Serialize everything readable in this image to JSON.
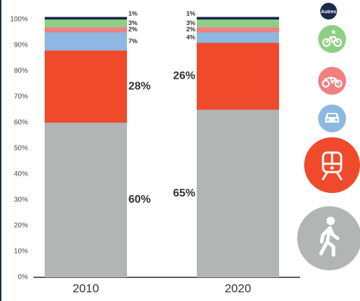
{
  "chart_data": {
    "type": "bar",
    "stacked": true,
    "categories": [
      "2010",
      "2020"
    ],
    "series": [
      {
        "icon": "walk",
        "color": "#b3b4b4",
        "values": [
          60,
          65
        ],
        "value_labels": [
          "60%",
          "65%"
        ]
      },
      {
        "icon": "transit",
        "color": "#ef4a2c",
        "values": [
          28,
          26
        ],
        "value_labels": [
          "28%",
          "26%"
        ]
      },
      {
        "icon": "car",
        "color": "#8cb8e2",
        "values": [
          7,
          4
        ],
        "value_labels": [
          "7%",
          "4%"
        ]
      },
      {
        "icon": "moto",
        "color": "#f07f80",
        "values": [
          2,
          2
        ],
        "value_labels": [
          "2%",
          "2%"
        ]
      },
      {
        "icon": "bike",
        "color": "#8fcf85",
        "values": [
          3,
          3
        ],
        "value_labels": [
          "3%",
          "3%"
        ]
      },
      {
        "name": "Autres",
        "color": "#1c2b4c",
        "values": [
          1,
          1
        ],
        "value_labels": [
          "1%",
          "1%"
        ]
      }
    ],
    "ylim": [
      0,
      100
    ],
    "yticks": [
      {
        "value": 0,
        "label": "0%"
      },
      {
        "value": 10,
        "label": "10%"
      },
      {
        "value": 20,
        "label": "20%"
      },
      {
        "value": 30,
        "label": "30%"
      },
      {
        "value": 40,
        "label": "40%"
      },
      {
        "value": 50,
        "label": "50%"
      },
      {
        "value": 60,
        "label": "60%"
      },
      {
        "value": 70,
        "label": "70%"
      },
      {
        "value": 80,
        "label": "80%"
      },
      {
        "value": 90,
        "label": "90%"
      },
      {
        "value": 100,
        "label": "100%"
      }
    ]
  }
}
